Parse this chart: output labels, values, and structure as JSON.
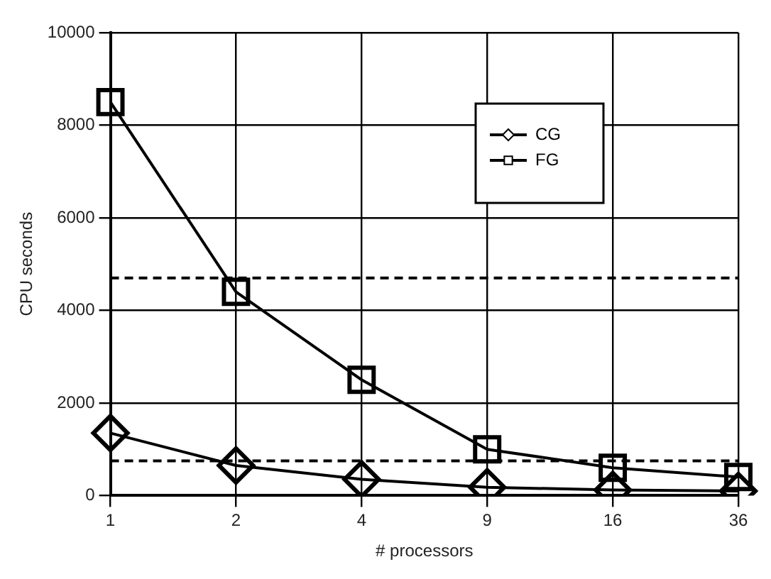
{
  "chart_data": {
    "type": "line",
    "xlabel": "# processors",
    "ylabel": "CPU seconds",
    "categories": [
      "1",
      "2",
      "4",
      "9",
      "16",
      "36"
    ],
    "series": [
      {
        "name": "CG",
        "color": "#000000",
        "marker": "diamond",
        "values": [
          1350,
          650,
          350,
          180,
          120,
          100
        ]
      },
      {
        "name": "FG",
        "color": "#000000",
        "marker": "square",
        "values": [
          8500,
          4400,
          2500,
          1000,
          600,
          400
        ]
      }
    ],
    "ylim": [
      0,
      10000
    ],
    "yticks": [
      0,
      2000,
      4000,
      6000,
      8000,
      10000
    ],
    "grid": true,
    "legend": "top right",
    "line_style": "solid",
    "ref_lines": [
      {
        "axis": "y",
        "value": 4700,
        "line_style": "dashed",
        "color": "#000000"
      },
      {
        "axis": "y",
        "value": 750,
        "line_style": "dashed",
        "color": "#000000"
      }
    ]
  }
}
